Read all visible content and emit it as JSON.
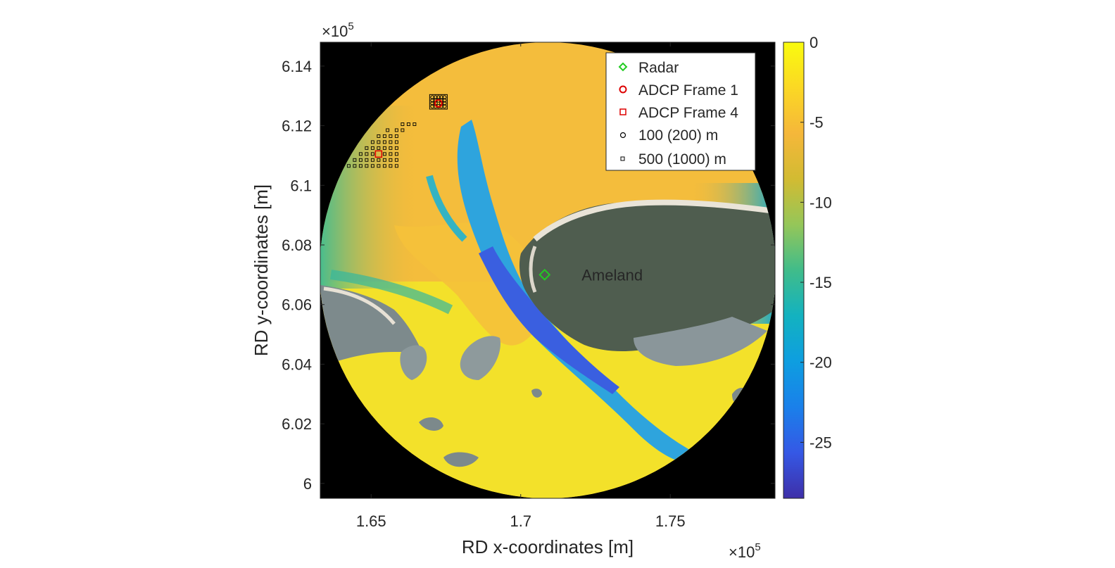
{
  "chart_data": {
    "type": "heatmap",
    "title": "",
    "xlabel": "RD x-coordinates [m]",
    "ylabel": "RD y-coordinates [m]",
    "x_exponent_label": "×10",
    "x_exponent_power": "5",
    "y_exponent_label": "×10",
    "y_exponent_power": "5",
    "xlim": [
      1.633,
      1.785
    ],
    "ylim": [
      5.995,
      6.148
    ],
    "x_unit_multiplier": 100000,
    "y_unit_multiplier": 100000,
    "xticks": [
      {
        "value": 1.65,
        "label": "1.65"
      },
      {
        "value": 1.7,
        "label": "1.7"
      },
      {
        "value": 1.75,
        "label": "1.75"
      }
    ],
    "yticks": [
      {
        "value": 6.14,
        "label": "6.14"
      },
      {
        "value": 6.12,
        "label": "6.12"
      },
      {
        "value": 6.1,
        "label": "6.1"
      },
      {
        "value": 6.08,
        "label": "6.08"
      },
      {
        "value": 6.06,
        "label": "6.06"
      },
      {
        "value": 6.04,
        "label": "6.04"
      },
      {
        "value": 6.02,
        "label": "6.02"
      },
      {
        "value": 6.0,
        "label": "6"
      }
    ],
    "colorbar": {
      "colormap": "parula",
      "range": [
        -28.5,
        0
      ],
      "ticks": [
        {
          "value": 0,
          "label": "0"
        },
        {
          "value": -5,
          "label": "-5"
        },
        {
          "value": -10,
          "label": "-10"
        },
        {
          "value": -15,
          "label": "-15"
        },
        {
          "value": -20,
          "label": "-20"
        },
        {
          "value": -25,
          "label": "-25"
        }
      ]
    },
    "legend": {
      "position": "top-right",
      "entries": [
        {
          "label": "Radar",
          "marker": "diamond",
          "color": "#22cc22"
        },
        {
          "label": "ADCP Frame 1",
          "marker": "circle",
          "color": "#dd0000"
        },
        {
          "label": "ADCP Frame 4",
          "marker": "square",
          "color": "#dd0000"
        },
        {
          "label": "100 (200) m",
          "marker": "small-circle",
          "color": "#000000"
        },
        {
          "label": "500 (1000) m",
          "marker": "small-square",
          "color": "#000000"
        }
      ]
    },
    "annotations": [
      {
        "text": "Ameland",
        "x": 1.718,
        "y": 6.07
      }
    ],
    "series": [
      {
        "name": "Radar",
        "marker": "diamond",
        "color": "#22cc22",
        "points": [
          [
            1.708,
            6.07
          ]
        ]
      },
      {
        "name": "ADCP Frame 1",
        "marker": "circle",
        "color": "#dd0000",
        "points": [
          [
            1.6725,
            6.1275
          ]
        ]
      },
      {
        "name": "ADCP Frame 4",
        "marker": "square",
        "color": "#dd0000",
        "points": [
          [
            1.6525,
            6.1105
          ]
        ]
      }
    ],
    "grid_500m_points": [
      [
        1.6625,
        6.1205
      ],
      [
        1.6645,
        6.1205
      ],
      [
        1.6605,
        6.1205
      ],
      [
        1.6555,
        6.1185
      ],
      [
        1.6585,
        6.1185
      ],
      [
        1.6605,
        6.1185
      ],
      [
        1.6525,
        6.1165
      ],
      [
        1.6545,
        6.1165
      ],
      [
        1.6565,
        6.1165
      ],
      [
        1.6585,
        6.1165
      ],
      [
        1.6505,
        6.1145
      ],
      [
        1.6525,
        6.1145
      ],
      [
        1.6545,
        6.1145
      ],
      [
        1.6565,
        6.1145
      ],
      [
        1.6585,
        6.1145
      ],
      [
        1.6485,
        6.1125
      ],
      [
        1.6505,
        6.1125
      ],
      [
        1.6525,
        6.1125
      ],
      [
        1.6545,
        6.1125
      ],
      [
        1.6565,
        6.1125
      ],
      [
        1.6585,
        6.1125
      ],
      [
        1.6465,
        6.1105
      ],
      [
        1.6485,
        6.1105
      ],
      [
        1.6505,
        6.1105
      ],
      [
        1.6545,
        6.1105
      ],
      [
        1.6565,
        6.1105
      ],
      [
        1.6585,
        6.1105
      ],
      [
        1.6445,
        6.1085
      ],
      [
        1.6465,
        6.1085
      ],
      [
        1.6485,
        6.1085
      ],
      [
        1.6505,
        6.1085
      ],
      [
        1.6525,
        6.1085
      ],
      [
        1.6545,
        6.1085
      ],
      [
        1.6565,
        6.1085
      ],
      [
        1.6585,
        6.1085
      ],
      [
        1.6425,
        6.1065
      ],
      [
        1.6445,
        6.1065
      ],
      [
        1.6465,
        6.1065
      ],
      [
        1.6485,
        6.1065
      ],
      [
        1.6505,
        6.1065
      ],
      [
        1.6525,
        6.1065
      ],
      [
        1.6545,
        6.1065
      ],
      [
        1.6565,
        6.1065
      ],
      [
        1.6585,
        6.1065
      ]
    ],
    "grid_100m_points": [
      [
        1.6705,
        6.1265
      ],
      [
        1.6715,
        6.1265
      ],
      [
        1.6725,
        6.1265
      ],
      [
        1.6735,
        6.1265
      ],
      [
        1.6745,
        6.1265
      ],
      [
        1.6705,
        6.1275
      ],
      [
        1.6715,
        6.1275
      ],
      [
        1.6735,
        6.1275
      ],
      [
        1.6745,
        6.1275
      ],
      [
        1.6705,
        6.1285
      ],
      [
        1.6715,
        6.1285
      ],
      [
        1.6725,
        6.1285
      ],
      [
        1.6735,
        6.1285
      ],
      [
        1.6745,
        6.1285
      ],
      [
        1.6705,
        6.1295
      ],
      [
        1.6715,
        6.1295
      ],
      [
        1.6725,
        6.1295
      ],
      [
        1.6735,
        6.1295
      ],
      [
        1.6745,
        6.1295
      ]
    ]
  }
}
